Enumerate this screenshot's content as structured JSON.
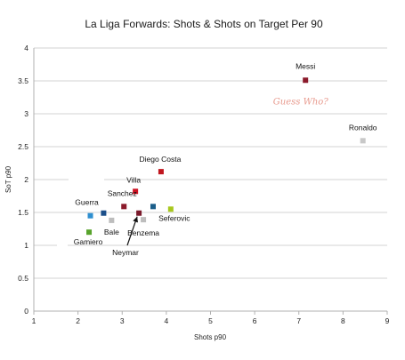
{
  "chart_data": {
    "type": "scatter",
    "title": "La Liga Forwards: Shots & Shots on Target Per 90",
    "xlabel": "Shots p90",
    "ylabel": "SoT p90",
    "xlim": [
      1,
      9
    ],
    "ylim": [
      0,
      4
    ],
    "xticks": [
      "1",
      "2",
      "3",
      "4",
      "5",
      "6",
      "7",
      "8",
      "9"
    ],
    "yticks": [
      "0",
      "0.5",
      "1",
      "1.5",
      "2",
      "2.5",
      "3",
      "3.5",
      "4"
    ],
    "grid": "horizontal",
    "legend": "none",
    "points": [
      {
        "label": "Messi",
        "x": 7.15,
        "y": 3.51,
        "color": "#8b1a2b"
      },
      {
        "label": "Ronaldo",
        "x": 8.45,
        "y": 2.59,
        "color": "#c8c8c8"
      },
      {
        "label": "Diego Costa",
        "x": 3.88,
        "y": 2.12,
        "color": "#c0161e"
      },
      {
        "label": "Villa",
        "x": 3.3,
        "y": 1.82,
        "color": "#cc1122"
      },
      {
        "label": "Sanchez",
        "x": 3.04,
        "y": 1.59,
        "color": "#8b1a2b"
      },
      {
        "label": "Guerra",
        "x": 2.28,
        "y": 1.45,
        "color": "#2e8fd0"
      },
      {
        "label": "",
        "x": 2.58,
        "y": 1.49,
        "color": "#1b4f8a"
      },
      {
        "label": "Bale",
        "x": 2.76,
        "y": 1.38,
        "color": "#bdbdbd"
      },
      {
        "label": "Neymar",
        "x": 3.38,
        "y": 1.49,
        "color": "#7a1a2b"
      },
      {
        "label": "Benzema",
        "x": 3.48,
        "y": 1.39,
        "color": "#bdbdbd"
      },
      {
        "label": "",
        "x": 3.7,
        "y": 1.59,
        "color": "#1b5e8a"
      },
      {
        "label": "Seferovic",
        "x": 4.1,
        "y": 1.55,
        "color": "#a8c81e"
      },
      {
        "label": "Gamiero",
        "x": 2.25,
        "y": 1.2,
        "color": "#58a32c"
      }
    ],
    "annotations": [
      {
        "text": "Guess Who?",
        "x": 7.0,
        "y": 3.14
      }
    ]
  }
}
